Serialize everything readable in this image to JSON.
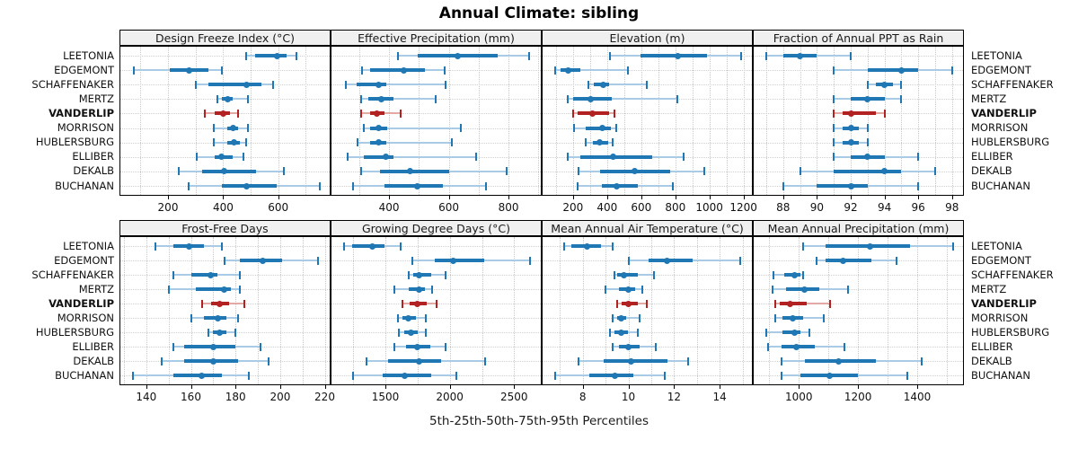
{
  "title": "Annual Climate: sibling",
  "caption": "5th-25th-50th-75th-95th Percentiles",
  "sites": [
    "LEETONIA",
    "EDGEMONT",
    "SCHAFFENAKER",
    "MERTZ",
    "VANDERLIP",
    "MORRISON",
    "HUBLERSBURG",
    "ELLIBER",
    "DEKALB",
    "BUCHANAN"
  ],
  "highlight_site": "VANDERLIP",
  "percentile_levels": [
    "5th",
    "25th",
    "50th",
    "75th",
    "95th"
  ],
  "colors": {
    "series": "#1f77b4",
    "series_light": "#a9cbe5",
    "highlight": "#b22222",
    "highlight_light": "#e2a9a5",
    "strip_bg": "#f0f0f0",
    "grid": "#c9c9c9",
    "border": "#000000",
    "text": "#1a1a1a"
  },
  "chart_data": [
    {
      "type": "percentile-dotplot",
      "title": "Design Freeze Index (°C)",
      "row": 0,
      "col": 0,
      "xlim": [
        24,
        790
      ],
      "ticks": [
        200,
        400,
        600
      ],
      "gridlines": [
        100,
        200,
        300,
        400,
        500,
        600,
        700
      ],
      "series": [
        {
          "site": "LEETONIA",
          "values": [
            485,
            515,
            595,
            630,
            665
          ]
        },
        {
          "site": "EDGEMONT",
          "values": [
            75,
            205,
            275,
            345,
            395
          ]
        },
        {
          "site": "SCHAFFENAKER",
          "values": [
            300,
            345,
            485,
            540,
            580
          ]
        },
        {
          "site": "MERTZ",
          "values": [
            380,
            395,
            415,
            435,
            490
          ]
        },
        {
          "site": "VANDERLIP",
          "values": [
            335,
            370,
            400,
            425,
            455
          ]
        },
        {
          "site": "MORRISON",
          "values": [
            365,
            415,
            435,
            455,
            490
          ]
        },
        {
          "site": "HUBLERSBURG",
          "values": [
            365,
            415,
            440,
            460,
            485
          ]
        },
        {
          "site": "ELLIBER",
          "values": [
            305,
            370,
            395,
            435,
            475
          ]
        },
        {
          "site": "DEKALB",
          "values": [
            240,
            325,
            405,
            520,
            620
          ]
        },
        {
          "site": "BUCHANAN",
          "values": [
            275,
            395,
            485,
            595,
            750
          ]
        }
      ]
    },
    {
      "type": "percentile-dotplot",
      "title": "Effective Precipitation (mm)",
      "row": 0,
      "col": 1,
      "xlim": [
        204,
        911
      ],
      "ticks": [
        400,
        600,
        800
      ],
      "gridlines": [
        300,
        400,
        500,
        600,
        700,
        800,
        900
      ],
      "series": [
        {
          "site": "LEETONIA",
          "values": [
            430,
            495,
            630,
            765,
            870
          ]
        },
        {
          "site": "EDGEMONT",
          "values": [
            310,
            335,
            450,
            520,
            585
          ]
        },
        {
          "site": "SCHAFFENAKER",
          "values": [
            255,
            290,
            365,
            390,
            590
          ]
        },
        {
          "site": "MERTZ",
          "values": [
            305,
            330,
            375,
            415,
            555
          ]
        },
        {
          "site": "VANDERLIP",
          "values": [
            305,
            335,
            360,
            385,
            440
          ]
        },
        {
          "site": "MORRISON",
          "values": [
            315,
            335,
            365,
            395,
            640
          ]
        },
        {
          "site": "HUBLERSBURG",
          "values": [
            295,
            335,
            365,
            390,
            610
          ]
        },
        {
          "site": "ELLIBER",
          "values": [
            260,
            315,
            390,
            415,
            690
          ]
        },
        {
          "site": "DEKALB",
          "values": [
            305,
            370,
            470,
            600,
            795
          ]
        },
        {
          "site": "BUCHANAN",
          "values": [
            280,
            385,
            495,
            580,
            725
          ]
        }
      ]
    },
    {
      "type": "percentile-dotplot",
      "title": "Elevation (m)",
      "row": 0,
      "col": 2,
      "xlim": [
        17,
        1254
      ],
      "ticks": [
        200,
        400,
        600,
        800,
        1000,
        1200
      ],
      "gridlines": [
        100,
        200,
        300,
        400,
        500,
        600,
        700,
        800,
        900,
        1000,
        1100,
        1200
      ],
      "series": [
        {
          "site": "LEETONIA",
          "values": [
            415,
            595,
            815,
            985,
            1185
          ]
        },
        {
          "site": "EDGEMONT",
          "values": [
            95,
            125,
            170,
            245,
            520
          ]
        },
        {
          "site": "SCHAFFENAKER",
          "values": [
            290,
            320,
            375,
            410,
            635
          ]
        },
        {
          "site": "MERTZ",
          "values": [
            170,
            200,
            305,
            430,
            810
          ]
        },
        {
          "site": "VANDERLIP",
          "values": [
            200,
            225,
            315,
            410,
            445
          ]
        },
        {
          "site": "MORRISON",
          "values": [
            205,
            275,
            370,
            420,
            455
          ]
        },
        {
          "site": "HUBLERSBURG",
          "values": [
            275,
            315,
            355,
            405,
            435
          ]
        },
        {
          "site": "ELLIBER",
          "values": [
            170,
            245,
            435,
            665,
            850
          ]
        },
        {
          "site": "DEKALB",
          "values": [
            230,
            360,
            560,
            770,
            970
          ]
        },
        {
          "site": "BUCHANAN",
          "values": [
            225,
            370,
            455,
            580,
            785
          ]
        }
      ]
    },
    {
      "type": "percentile-dotplot",
      "title": "Fraction of Annual PPT as Rain",
      "row": 0,
      "col": 3,
      "xlim": [
        86.2,
        98.7
      ],
      "ticks": [
        88,
        90,
        92,
        94,
        96,
        98
      ],
      "gridlines": [
        87,
        88,
        89,
        90,
        91,
        92,
        93,
        94,
        95,
        96,
        97,
        98
      ],
      "series": [
        {
          "site": "LEETONIA",
          "values": [
            87,
            88,
            89,
            90,
            92
          ]
        },
        {
          "site": "EDGEMONT",
          "values": [
            91,
            93,
            95,
            96,
            98
          ]
        },
        {
          "site": "SCHAFFENAKER",
          "values": [
            93,
            93.5,
            94,
            94.5,
            95
          ]
        },
        {
          "site": "MERTZ",
          "values": [
            91,
            92,
            93,
            94,
            95
          ]
        },
        {
          "site": "VANDERLIP",
          "values": [
            91,
            91.5,
            92,
            93.5,
            94
          ]
        },
        {
          "site": "MORRISON",
          "values": [
            91,
            91.5,
            92,
            92.5,
            93
          ]
        },
        {
          "site": "HUBLERSBURG",
          "values": [
            91,
            91.5,
            92,
            92.5,
            93
          ]
        },
        {
          "site": "ELLIBER",
          "values": [
            91,
            92,
            93,
            94,
            96
          ]
        },
        {
          "site": "DEKALB",
          "values": [
            89,
            91,
            94,
            95,
            97
          ]
        },
        {
          "site": "BUCHANAN",
          "values": [
            88,
            90,
            92,
            93,
            96
          ]
        }
      ]
    },
    {
      "type": "percentile-dotplot",
      "title": "Frost-Free Days",
      "row": 1,
      "col": 0,
      "xlim": [
        128,
        222.6
      ],
      "ticks": [
        140,
        160,
        180,
        200,
        220
      ],
      "gridlines": [
        130,
        140,
        150,
        160,
        170,
        180,
        190,
        200,
        210,
        220
      ],
      "series": [
        {
          "site": "LEETONIA",
          "values": [
            144,
            152,
            159,
            166,
            174
          ]
        },
        {
          "site": "EDGEMONT",
          "values": [
            175,
            182,
            192,
            201,
            217
          ]
        },
        {
          "site": "SCHAFFENAKER",
          "values": [
            152,
            160,
            169,
            172,
            182
          ]
        },
        {
          "site": "MERTZ",
          "values": [
            150,
            162,
            175,
            178,
            182
          ]
        },
        {
          "site": "VANDERLIP",
          "values": [
            165,
            169,
            173,
            177,
            184
          ]
        },
        {
          "site": "MORRISON",
          "values": [
            160,
            166,
            172,
            176,
            181
          ]
        },
        {
          "site": "HUBLERSBURG",
          "values": [
            168,
            170,
            173,
            176,
            180
          ]
        },
        {
          "site": "ELLIBER",
          "values": [
            152,
            157,
            170,
            180,
            191
          ]
        },
        {
          "site": "DEKALB",
          "values": [
            147,
            157,
            170,
            181,
            195
          ]
        },
        {
          "site": "BUCHANAN",
          "values": [
            134,
            152,
            165,
            174,
            186
          ]
        }
      ]
    },
    {
      "type": "percentile-dotplot",
      "title": "Growing Degree Days (°C)",
      "row": 1,
      "col": 1,
      "xlim": [
        1074,
        2714
      ],
      "ticks": [
        1500,
        2000,
        2500
      ],
      "gridlines": [
        1250,
        1500,
        1750,
        2000,
        2250,
        2500
      ],
      "series": [
        {
          "site": "LEETONIA",
          "values": [
            1175,
            1240,
            1395,
            1495,
            1620
          ]
        },
        {
          "site": "EDGEMONT",
          "values": [
            1710,
            1880,
            2025,
            2265,
            2620
          ]
        },
        {
          "site": "SCHAFFENAKER",
          "values": [
            1680,
            1715,
            1760,
            1855,
            1965
          ]
        },
        {
          "site": "MERTZ",
          "values": [
            1570,
            1680,
            1760,
            1810,
            1865
          ]
        },
        {
          "site": "VANDERLIP",
          "values": [
            1635,
            1690,
            1750,
            1820,
            1900
          ]
        },
        {
          "site": "MORRISON",
          "values": [
            1595,
            1635,
            1680,
            1740,
            1815
          ]
        },
        {
          "site": "HUBLERSBURG",
          "values": [
            1605,
            1645,
            1700,
            1750,
            1815
          ]
        },
        {
          "site": "ELLIBER",
          "values": [
            1570,
            1660,
            1750,
            1845,
            1965
          ]
        },
        {
          "site": "DEKALB",
          "values": [
            1355,
            1520,
            1760,
            1935,
            2275
          ]
        },
        {
          "site": "BUCHANAN",
          "values": [
            1245,
            1475,
            1650,
            1855,
            2050
          ]
        }
      ]
    },
    {
      "type": "percentile-dotplot",
      "title": "Mean Annual Air Temperature (°C)",
      "row": 1,
      "col": 2,
      "xlim": [
        6.2,
        15.45
      ],
      "ticks": [
        8,
        10,
        12,
        14
      ],
      "gridlines": [
        7,
        8,
        9,
        10,
        11,
        12,
        13,
        14,
        15
      ],
      "series": [
        {
          "site": "LEETONIA",
          "values": [
            7.2,
            7.5,
            8.2,
            8.8,
            9.3
          ]
        },
        {
          "site": "EDGEMONT",
          "values": [
            10.0,
            10.9,
            11.7,
            12.8,
            14.9
          ]
        },
        {
          "site": "SCHAFFENAKER",
          "values": [
            9.4,
            9.5,
            9.8,
            10.4,
            11.1
          ]
        },
        {
          "site": "MERTZ",
          "values": [
            9.0,
            9.6,
            10.0,
            10.3,
            10.6
          ]
        },
        {
          "site": "VANDERLIP",
          "values": [
            9.5,
            9.7,
            10.0,
            10.4,
            10.8
          ]
        },
        {
          "site": "MORRISON",
          "values": [
            9.3,
            9.5,
            9.7,
            9.9,
            10.5
          ]
        },
        {
          "site": "HUBLERSBURG",
          "values": [
            9.2,
            9.4,
            9.7,
            10.0,
            10.4
          ]
        },
        {
          "site": "ELLIBER",
          "values": [
            9.3,
            9.6,
            10.0,
            10.5,
            11.2
          ]
        },
        {
          "site": "DEKALB",
          "values": [
            7.8,
            8.9,
            10.1,
            11.7,
            12.6
          ]
        },
        {
          "site": "BUCHANAN",
          "values": [
            6.8,
            8.3,
            9.4,
            10.2,
            11.6
          ]
        }
      ]
    },
    {
      "type": "percentile-dotplot",
      "title": "Mean Annual Precipitation (mm)",
      "row": 1,
      "col": 3,
      "xlim": [
        844,
        1558
      ],
      "ticks": [
        1000,
        1200,
        1400
      ],
      "gridlines": [
        900,
        1000,
        1100,
        1200,
        1300,
        1400,
        1500
      ],
      "series": [
        {
          "site": "LEETONIA",
          "values": [
            1015,
            1090,
            1240,
            1375,
            1520
          ]
        },
        {
          "site": "EDGEMONT",
          "values": [
            1060,
            1090,
            1150,
            1245,
            1330
          ]
        },
        {
          "site": "SCHAFFENAKER",
          "values": [
            915,
            950,
            985,
            1005,
            1015
          ]
        },
        {
          "site": "MERTZ",
          "values": [
            910,
            955,
            1020,
            1070,
            1165
          ]
        },
        {
          "site": "VANDERLIP",
          "values": [
            920,
            935,
            970,
            1025,
            1105
          ]
        },
        {
          "site": "MORRISON",
          "values": [
            920,
            945,
            980,
            1015,
            1085
          ]
        },
        {
          "site": "HUBLERSBURG",
          "values": [
            890,
            945,
            985,
            1005,
            1035
          ]
        },
        {
          "site": "ELLIBER",
          "values": [
            895,
            940,
            990,
            1055,
            1155
          ]
        },
        {
          "site": "DEKALB",
          "values": [
            940,
            1020,
            1135,
            1260,
            1415
          ]
        },
        {
          "site": "BUCHANAN",
          "values": [
            940,
            1005,
            1105,
            1200,
            1365
          ]
        }
      ]
    }
  ]
}
